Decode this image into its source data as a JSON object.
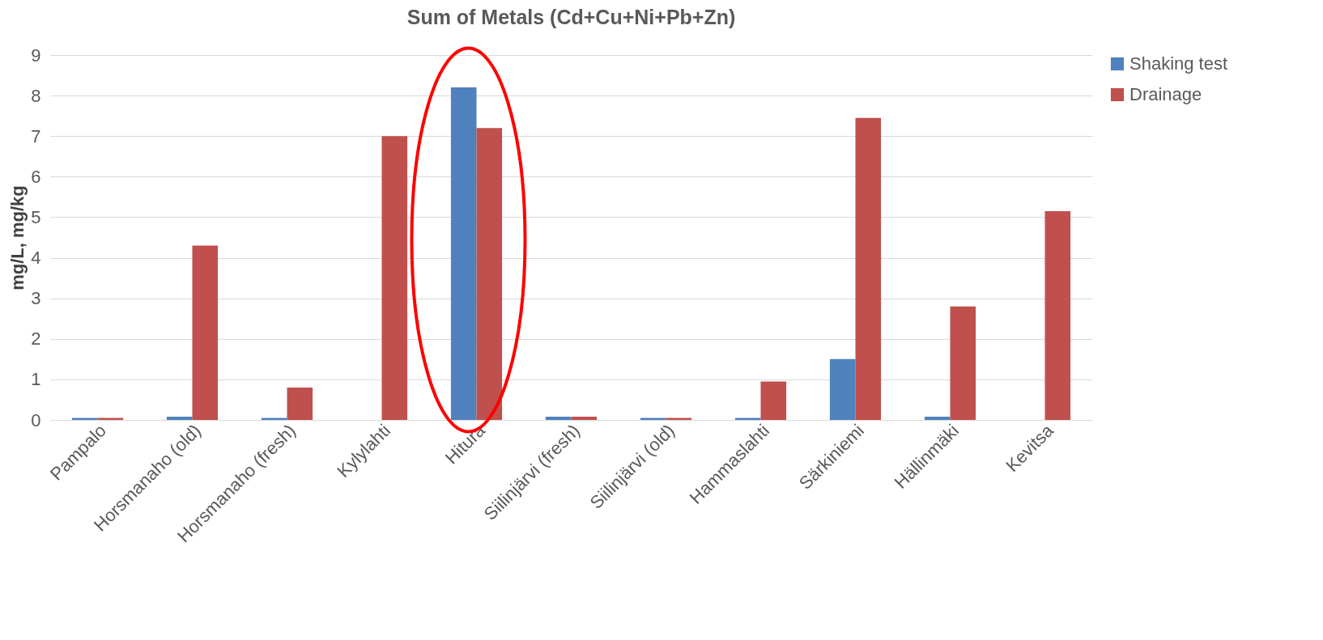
{
  "chart_data": {
    "type": "bar",
    "title": "Sum of Metals (Cd+Cu+Ni+Pb+Zn)",
    "ylabel": "mg/L, mg/kg",
    "categories": [
      "Pampalo",
      "Horsmanaho (old)",
      "Horsmanaho (fresh)",
      "Kylylahti",
      "Hitura",
      "Siilinjärvi (fresh)",
      "Siilinjärvi (old)",
      "Hammaslahti",
      "Särkiniemi",
      "Hällinmäki",
      "Kevitsa"
    ],
    "series": [
      {
        "name": "Shaking test",
        "color": "#4f81bd",
        "values": [
          0.05,
          0.08,
          0.05,
          null,
          8.2,
          0.08,
          0.05,
          0.05,
          1.5,
          0.08,
          null
        ]
      },
      {
        "name": "Drainage",
        "color": "#c0504d",
        "values": [
          0.05,
          4.3,
          0.8,
          7.0,
          7.2,
          0.08,
          0.05,
          0.95,
          7.45,
          2.8,
          5.15
        ]
      }
    ],
    "ylim": [
      0,
      9
    ],
    "yticks": [
      0,
      1,
      2,
      3,
      4,
      5,
      6,
      7,
      8,
      9
    ],
    "grid": "y",
    "legend": "right"
  }
}
